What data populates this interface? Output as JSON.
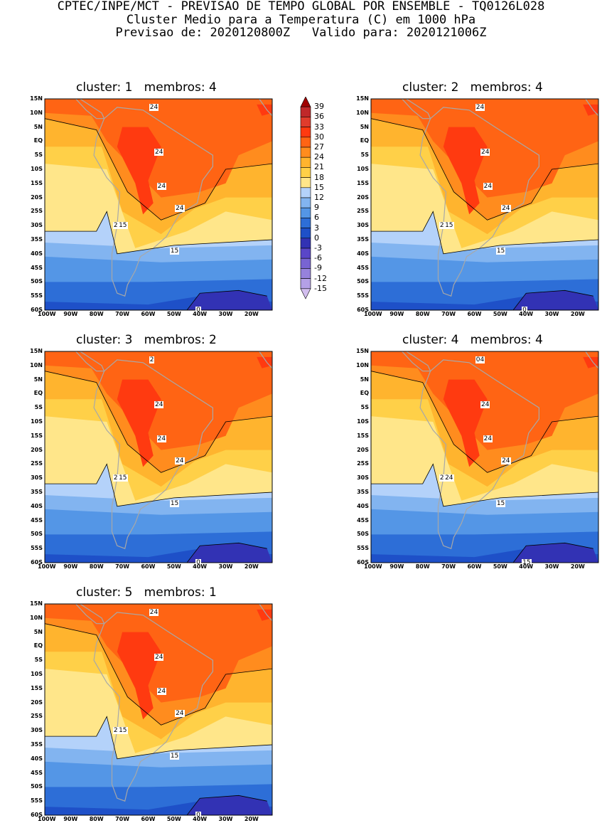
{
  "header": {
    "line1": "CPTEC/INPE/MCT - PREVISAO DE TEMPO GLOBAL POR ENSEMBLE - TQ0126L028",
    "line2": "Cluster Medio para a Temperatura (C) em 1000 hPa",
    "line3": "Previsao de: 2020120800Z   Valido para: 2020121006Z"
  },
  "axes": {
    "lat_labels": [
      "15N",
      "10N",
      "5N",
      "EQ",
      "5S",
      "10S",
      "15S",
      "20S",
      "25S",
      "30S",
      "35S",
      "40S",
      "45S",
      "50S",
      "55S",
      "60S"
    ],
    "lon_labels": [
      "100W",
      "90W",
      "80W",
      "70W",
      "60W",
      "50W",
      "40W",
      "30W",
      "20W"
    ],
    "lat_range": [
      -60,
      15
    ],
    "lon_range": [
      -100,
      -12
    ]
  },
  "colorbar": {
    "levels": [
      "39",
      "36",
      "33",
      "30",
      "27",
      "24",
      "21",
      "18",
      "15",
      "12",
      "9",
      "6",
      "3",
      "0",
      "-3",
      "-6",
      "-9",
      "-12",
      "-15"
    ],
    "colors": [
      "#a00000",
      "#c0282a",
      "#e03c2c",
      "#ff3a10",
      "#ff6414",
      "#ff8c1e",
      "#ffb42e",
      "#ffd048",
      "#ffe68a",
      "#b4d2fa",
      "#82b4f0",
      "#5496e6",
      "#2d6ed7",
      "#1e50c8",
      "#3232b4",
      "#5a46c8",
      "#7864d2",
      "#9682dc",
      "#b4a0e6",
      "#d2beee"
    ]
  },
  "colors": {
    "land_outline": "#a8a8a8",
    "contour": "#000000"
  },
  "panels": [
    {
      "title": "cluster: 1   membros: 4",
      "labels": [
        "24",
        "24",
        "24",
        "24",
        "24",
        "15",
        "15",
        "0"
      ]
    },
    {
      "title": "cluster: 2   membros: 4",
      "labels": [
        "24",
        "24",
        "24",
        "24",
        "24",
        "15",
        "15",
        "0"
      ]
    },
    {
      "title": "cluster: 3   membros: 2",
      "labels": [
        "2",
        "24",
        "24",
        "24",
        "24",
        "15",
        "15",
        "0"
      ]
    },
    {
      "title": "cluster: 4   membros: 4",
      "labels": [
        "24",
        "24",
        "24",
        "24",
        "24",
        "24",
        "15",
        "15",
        "0"
      ]
    },
    {
      "title": "cluster: 5   membros: 1",
      "labels": [
        "24",
        "24",
        "24",
        "24",
        "24",
        "15",
        "15",
        "0"
      ]
    }
  ]
}
